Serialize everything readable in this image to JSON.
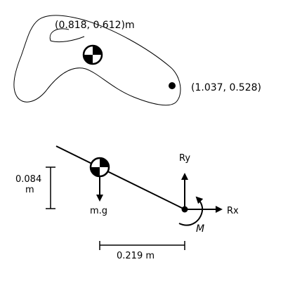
{
  "upper_figure": {
    "com_coord_label": "(0.818, 0.612)m",
    "joint_coord_label": "(1.037, 0.528)"
  },
  "free_body_diagram": {
    "vertical_dim_value": "0.084",
    "vertical_dim_unit": "m",
    "horizontal_dim_label": "0.219 m",
    "weight_label": "m.g",
    "reaction_y_label": "Ry",
    "reaction_x_label": "Rx",
    "moment_label": "M"
  },
  "colors": {
    "ink": "#000000",
    "background": "#ffffff"
  }
}
